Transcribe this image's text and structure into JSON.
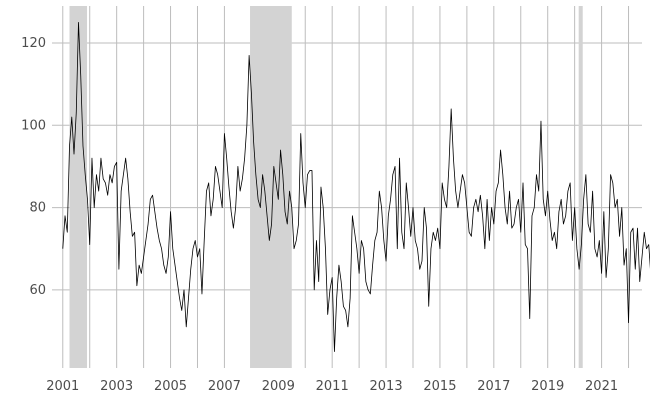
{
  "chart_data": {
    "type": "line",
    "title": "",
    "xlabel": "",
    "ylabel": "",
    "xlim": [
      2000.6,
      2022.5
    ],
    "ylim": [
      41,
      129
    ],
    "grid": true,
    "legend": "none",
    "x_ticks": [
      2001,
      2003,
      2005,
      2007,
      2009,
      2011,
      2013,
      2015,
      2017,
      2019,
      2021
    ],
    "x_tick_labels": [
      "2001",
      "2003",
      "2005",
      "2007",
      "2009",
      "2011",
      "2013",
      "2015",
      "2017",
      "2019",
      "2021"
    ],
    "x_minor_ticks": [
      2002,
      2004,
      2006,
      2008,
      2010,
      2012,
      2014,
      2016,
      2018,
      2020,
      2022
    ],
    "y_ticks": [
      60,
      80,
      100,
      120
    ],
    "y_tick_labels": [
      "60",
      "80",
      "100",
      "120"
    ],
    "shaded_periods": [
      [
        2001.25,
        2001.9
      ],
      [
        2007.95,
        2009.5
      ],
      [
        2020.15,
        2020.3
      ]
    ],
    "colors": {
      "line": "#000000",
      "shade": "#d3d3d3",
      "grid": "#bdbdbd",
      "tick_text": "#4d4d4d"
    },
    "series": [
      {
        "start_year": 2001,
        "start_month": 1,
        "values": [
          70,
          78,
          74,
          95,
          102,
          93,
          103,
          125,
          112,
          95,
          88,
          82,
          71,
          92,
          80,
          88,
          84,
          92,
          87,
          86,
          83,
          88,
          86,
          90,
          91,
          65,
          84,
          88,
          92,
          87,
          79,
          73,
          74,
          61,
          66,
          64,
          68,
          72,
          76,
          82,
          83,
          79,
          75,
          72,
          70,
          66,
          64,
          68,
          79,
          70,
          66,
          62,
          58,
          55,
          60,
          51,
          58,
          65,
          70,
          72,
          68,
          70,
          59,
          72,
          84,
          86,
          78,
          82,
          90,
          88,
          84,
          80,
          98,
          92,
          85,
          79,
          75,
          80,
          90,
          84,
          87,
          92,
          100,
          117,
          108,
          96,
          88,
          82,
          80,
          88,
          84,
          78,
          72,
          76,
          90,
          86,
          82,
          94,
          88,
          79,
          76,
          84,
          80,
          70,
          72,
          76,
          98,
          86,
          80,
          88,
          89,
          89,
          60,
          72,
          62,
          85,
          80,
          70,
          54,
          60,
          63,
          45,
          58,
          66,
          62,
          56,
          55,
          51,
          58,
          78,
          74,
          70,
          64,
          72,
          70,
          62,
          60,
          59,
          66,
          72,
          74,
          84,
          80,
          72,
          67,
          78,
          82,
          88,
          90,
          70,
          92,
          74,
          70,
          86,
          80,
          73,
          80,
          72,
          70,
          65,
          67,
          80,
          75,
          56,
          70,
          74,
          72,
          75,
          70,
          86,
          82,
          80,
          90,
          104,
          92,
          84,
          80,
          84,
          88,
          86,
          80,
          74,
          73,
          80,
          82,
          79,
          83,
          78,
          70,
          82,
          72,
          80,
          76,
          84,
          86,
          94,
          88,
          80,
          76,
          84,
          75,
          76,
          80,
          82,
          74,
          86,
          71,
          70,
          53,
          78,
          80,
          88,
          84,
          101,
          82,
          78,
          84,
          77,
          72,
          74,
          70,
          79,
          82,
          76,
          78,
          84,
          86,
          72,
          80,
          70,
          65,
          71,
          82,
          88,
          76,
          74,
          84,
          70,
          68,
          72,
          64,
          79,
          63,
          70,
          88,
          86,
          80,
          82,
          73,
          80,
          66,
          70,
          52,
          74,
          75,
          65,
          75,
          62,
          68,
          74,
          70,
          71,
          63,
          70,
          62,
          71,
          58,
          73,
          64,
          72,
          60,
          68,
          65,
          74,
          70,
          58,
          71,
          64,
          66,
          60,
          72,
          59,
          70,
          63,
          67,
          66,
          62,
          64,
          70,
          60,
          65,
          66,
          58,
          70,
          69,
          57,
          72,
          105,
          74,
          58,
          70,
          72,
          75,
          72,
          60,
          66,
          68,
          70,
          63,
          58,
          55,
          68,
          70,
          74,
          68,
          76,
          83,
          75,
          80,
          86,
          72,
          72,
          73
        ]
      }
    ]
  }
}
